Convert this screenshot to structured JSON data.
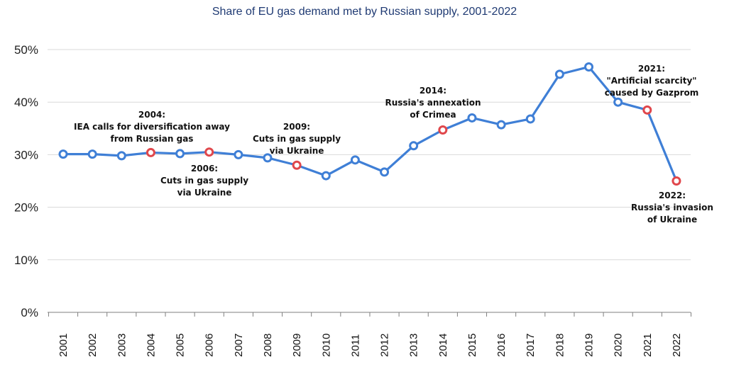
{
  "chart_data": {
    "type": "line",
    "title": "Share of EU gas demand met by Russian supply, 2001-2022",
    "xlabel": "",
    "ylabel": "",
    "ylim": [
      0,
      50
    ],
    "y_ticks": [
      "0%",
      "10%",
      "20%",
      "30%",
      "40%",
      "50%"
    ],
    "grid": true,
    "categories": [
      "2001",
      "2002",
      "2003",
      "2004",
      "2005",
      "2006",
      "2007",
      "2008",
      "2009",
      "2010",
      "2011",
      "2012",
      "2013",
      "2014",
      "2015",
      "2016",
      "2017",
      "2018",
      "2019",
      "2020",
      "2021",
      "2022"
    ],
    "series": [
      {
        "color": "#3f7fd6",
        "values": [
          30.1,
          30.1,
          29.8,
          30.4,
          30.2,
          30.5,
          30.0,
          29.4,
          28.0,
          26.0,
          29.0,
          26.7,
          31.7,
          34.7,
          37.0,
          35.7,
          36.8,
          45.3,
          46.7,
          40.0,
          38.5,
          25.0
        ],
        "highlighted_years": [
          "2004",
          "2006",
          "2009",
          "2014",
          "2021",
          "2022"
        ],
        "highlight_color": "#e0474c"
      }
    ],
    "annotations": [
      {
        "year": "2004",
        "lines": [
          "2004:",
          "IEA calls for diversification away",
          "from Russian gas"
        ]
      },
      {
        "year": "2006",
        "lines": [
          "2006:",
          "Cuts in gas supply",
          "via Ukraine"
        ]
      },
      {
        "year": "2009",
        "lines": [
          "2009:",
          "Cuts in gas supply",
          "via Ukraine"
        ]
      },
      {
        "year": "2014",
        "lines": [
          "2014:",
          "Russia's annexation",
          "of Crimea"
        ]
      },
      {
        "year": "2021",
        "lines": [
          "2021:",
          "\"Artificial scarcity\"",
          "caused by Gazprom"
        ]
      },
      {
        "year": "2022",
        "lines": [
          "2022:",
          "Russia's invasion",
          "of Ukraine"
        ]
      }
    ]
  }
}
